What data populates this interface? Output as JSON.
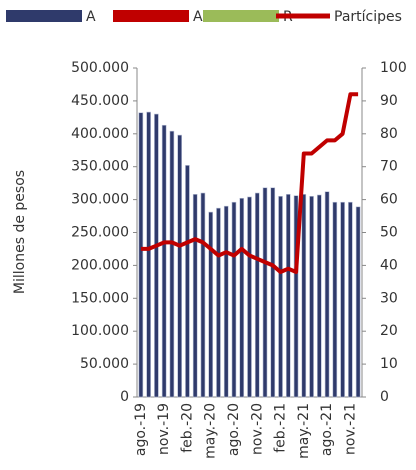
{
  "chart_data": {
    "type": "bar",
    "y_label": "Millones de pesos",
    "categories": [
      "ago.-19",
      null,
      null,
      "nov.-19",
      null,
      null,
      "feb.-20",
      null,
      null,
      "may.-20",
      null,
      null,
      "ago.-20",
      null,
      null,
      "nov.-20",
      null,
      null,
      "feb.-21",
      null,
      null,
      "may.-21",
      null,
      null,
      "ago.-21",
      null,
      null,
      "nov.-21",
      null
    ],
    "series": [
      {
        "name": "A",
        "color": "#2f3a6b",
        "values": [
          432000,
          433000,
          430000,
          413000,
          404000,
          398000,
          352000,
          308000,
          310000,
          281000,
          287000,
          290000,
          296000,
          302000,
          304000,
          310000,
          318000,
          318000,
          305000,
          308000,
          306000,
          308000,
          305000,
          307000,
          312000,
          296000,
          296000,
          296000,
          289000
        ]
      },
      {
        "name": "AE",
        "color": "#c00000",
        "values": [
          null,
          null,
          null,
          null,
          null,
          null,
          null,
          null,
          null,
          null,
          null,
          null,
          null,
          null,
          null,
          null,
          null,
          null,
          null,
          null,
          null,
          null,
          null,
          null,
          null,
          null,
          null,
          null,
          null
        ]
      },
      {
        "name": "R",
        "color": "#9bbb59",
        "values": [
          null,
          null,
          null,
          null,
          null,
          null,
          null,
          null,
          null,
          null,
          null,
          null,
          null,
          null,
          null,
          null,
          null,
          null,
          null,
          null,
          null,
          null,
          null,
          null,
          null,
          null,
          null,
          null,
          null
        ]
      },
      {
        "name": "Partícipes",
        "color": "#c00000",
        "type": "line",
        "axis": "y2",
        "values": [
          45,
          45,
          46,
          47,
          47,
          46,
          47,
          48,
          47,
          45,
          43,
          44,
          43,
          45,
          43,
          42,
          41,
          40,
          38,
          39,
          38,
          74,
          74,
          76,
          78,
          78,
          80,
          92,
          92
        ]
      }
    ],
    "ylim": [
      0,
      500000
    ],
    "yticks": [
      {
        "value": 0,
        "label": "0"
      },
      {
        "value": 50000,
        "label": "50.000"
      },
      {
        "value": 100000,
        "label": "100.000"
      },
      {
        "value": 150000,
        "label": "150.000"
      },
      {
        "value": 200000,
        "label": "200.000"
      },
      {
        "value": 250000,
        "label": "250.000"
      },
      {
        "value": 300000,
        "label": "300.000"
      },
      {
        "value": 350000,
        "label": "350.000"
      },
      {
        "value": 400000,
        "label": "400.000"
      },
      {
        "value": 450000,
        "label": "450.000"
      },
      {
        "value": 500000,
        "label": "500.000"
      }
    ],
    "y2lim": [
      0,
      100
    ],
    "y2ticks": [
      0,
      10,
      20,
      30,
      40,
      50,
      60,
      70,
      80,
      90,
      100
    ]
  }
}
